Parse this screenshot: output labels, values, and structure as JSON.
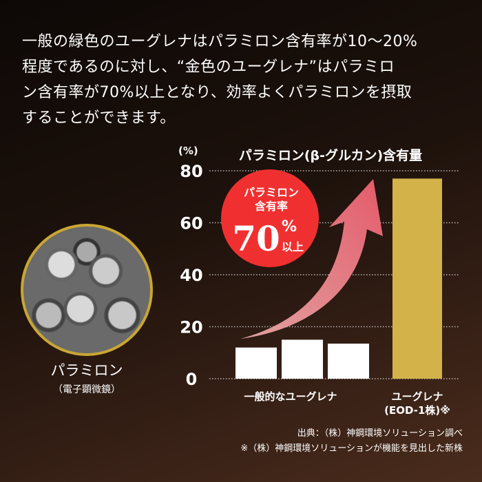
{
  "intro_lines": [
    "一般の緑色のユーグレナはパラミロン含有率が10〜20%",
    "程度であるのに対し、“金色のユーグレナ”はパラミロ",
    "ン含有率が70%以上となり、効率よくパラミロンを摂取",
    "することができます。"
  ],
  "photo": {
    "label": "パラミロン",
    "sub": "（電子顕微鏡）"
  },
  "badge": {
    "line1": "パラミロン",
    "line2": "含有率",
    "value": "70",
    "unit": "%",
    "suffix": "以上",
    "color": "#f03030"
  },
  "chart_data": {
    "type": "bar",
    "title": "パラミロン(β-グルカン)含有量",
    "ylabel": "(%)",
    "ylim": [
      0,
      80
    ],
    "yticks": [
      "0",
      "20",
      "40",
      "60",
      "80"
    ],
    "grid": true,
    "groups": [
      {
        "label": "一般的なユーグレナ",
        "values": [
          12,
          15,
          13.5
        ],
        "color": "#ffffff"
      },
      {
        "label": "ユーグレナ",
        "label2": "(EOD-1株)※",
        "values": [
          77
        ],
        "color": "#d4b24a"
      }
    ]
  },
  "sources": [
    "出典：（株）神鋼環境ソリューション調べ",
    "※（株）神鋼環境ソリューションが機能を見出した新株"
  ]
}
